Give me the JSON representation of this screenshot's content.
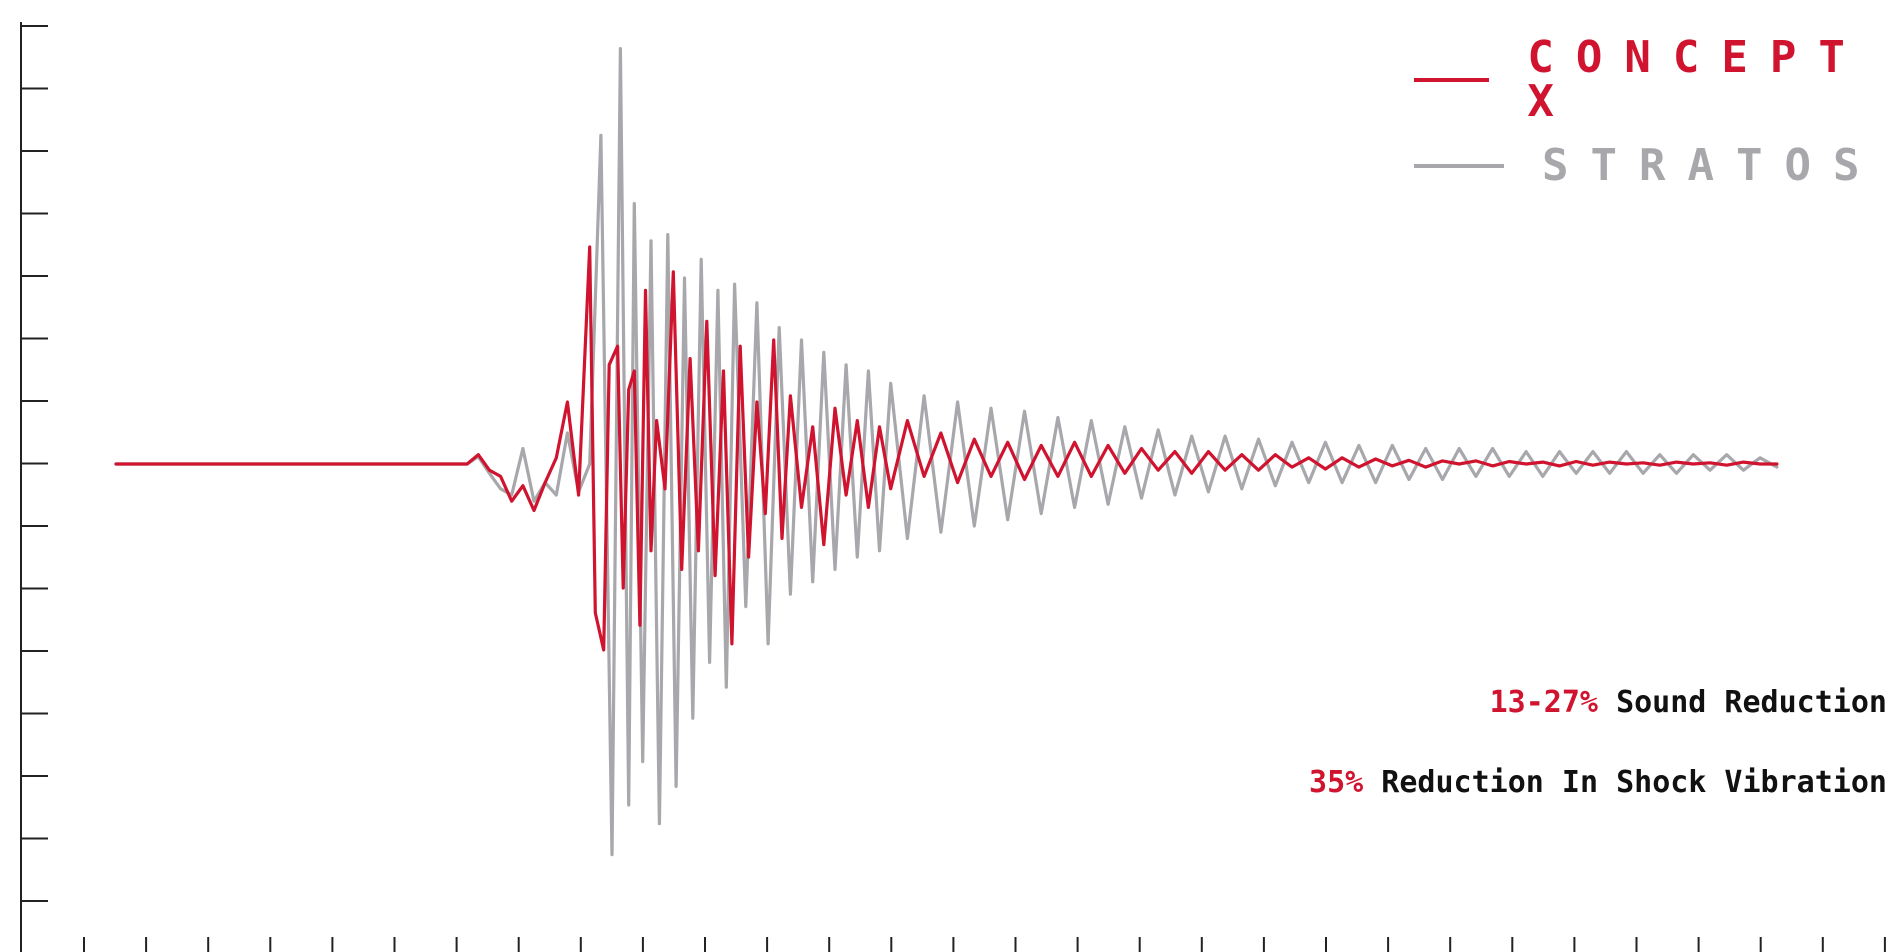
{
  "chart_data": {
    "type": "line",
    "title": "",
    "xlabel": "",
    "ylabel": "",
    "xlim": [
      0,
      30
    ],
    "ylim": [
      -7,
      7
    ],
    "x_tick_count": 30,
    "y_tick_count": 15,
    "grid": false,
    "legend_position": "top-right",
    "series": [
      {
        "name": "CONCEPT X",
        "color": "#d0132e",
        "x": [
          0,
          6.3,
          6.5,
          6.7,
          6.9,
          7.1,
          7.3,
          7.5,
          7.7,
          7.9,
          8.1,
          8.3,
          8.5,
          8.6,
          8.75,
          8.85,
          9.0,
          9.1,
          9.2,
          9.3,
          9.4,
          9.5,
          9.6,
          9.7,
          9.85,
          10.0,
          10.15,
          10.3,
          10.45,
          10.6,
          10.75,
          10.9,
          11.05,
          11.2,
          11.35,
          11.5,
          11.65,
          11.8,
          11.95,
          12.1,
          12.3,
          12.5,
          12.7,
          12.9,
          13.1,
          13.3,
          13.5,
          13.7,
          13.9,
          14.2,
          14.5,
          14.8,
          15.1,
          15.4,
          15.7,
          16.0,
          16.3,
          16.6,
          16.9,
          17.2,
          17.5,
          17.8,
          18.1,
          18.4,
          18.7,
          19.0,
          19.3,
          19.6,
          19.9,
          20.2,
          20.5,
          20.8,
          21.1,
          21.4,
          21.7,
          22.0,
          22.3,
          22.6,
          22.9,
          23.2,
          23.5,
          23.8,
          24.1,
          24.4,
          24.7,
          25.0,
          25.3,
          25.6,
          25.9,
          26.2,
          26.5,
          26.8,
          27.1,
          27.4,
          27.7,
          28.0,
          28.3,
          28.6,
          28.9,
          29.2,
          29.5,
          29.8
        ],
        "values": [
          0,
          0,
          0.15,
          -0.1,
          -0.2,
          -0.6,
          -0.35,
          -0.75,
          -0.3,
          0.1,
          1.0,
          -0.5,
          3.5,
          -2.4,
          -3.0,
          1.6,
          1.9,
          -2.0,
          1.2,
          1.5,
          -2.6,
          2.8,
          -1.4,
          0.7,
          -0.4,
          3.1,
          -1.7,
          1.7,
          -1.4,
          2.3,
          -1.8,
          1.5,
          -2.9,
          1.9,
          -1.5,
          1.0,
          -0.8,
          2.0,
          -1.2,
          1.1,
          -0.7,
          0.6,
          -1.3,
          0.9,
          -0.5,
          0.7,
          -0.7,
          0.6,
          -0.4,
          0.7,
          -0.2,
          0.5,
          -0.3,
          0.4,
          -0.2,
          0.35,
          -0.25,
          0.3,
          -0.2,
          0.35,
          -0.2,
          0.3,
          -0.15,
          0.25,
          -0.1,
          0.2,
          -0.15,
          0.2,
          -0.1,
          0.15,
          -0.1,
          0.15,
          -0.05,
          0.1,
          -0.08,
          0.1,
          -0.05,
          0.08,
          -0.03,
          0.06,
          -0.05,
          0.05,
          0.0,
          0.05,
          -0.03,
          0.04,
          0.0,
          0.03,
          -0.03,
          0.04,
          -0.02,
          0.03,
          0.0,
          0.02,
          -0.02,
          0.03,
          0.0,
          0.02,
          -0.02,
          0.03,
          0.0,
          0.0
        ]
      },
      {
        "name": "STRATOS",
        "color": "#a7a7ac",
        "x": [
          0,
          6.3,
          6.5,
          6.7,
          6.9,
          7.1,
          7.3,
          7.5,
          7.7,
          7.9,
          8.1,
          8.3,
          8.5,
          8.7,
          8.9,
          9.05,
          9.2,
          9.3,
          9.45,
          9.6,
          9.75,
          9.9,
          10.05,
          10.2,
          10.35,
          10.5,
          10.65,
          10.8,
          10.95,
          11.1,
          11.3,
          11.5,
          11.7,
          11.9,
          12.1,
          12.3,
          12.5,
          12.7,
          12.9,
          13.1,
          13.3,
          13.5,
          13.7,
          13.9,
          14.2,
          14.5,
          14.8,
          15.1,
          15.4,
          15.7,
          16.0,
          16.3,
          16.6,
          16.9,
          17.2,
          17.5,
          17.8,
          18.1,
          18.4,
          18.7,
          19.0,
          19.3,
          19.6,
          19.9,
          20.2,
          20.5,
          20.8,
          21.1,
          21.4,
          21.7,
          22.0,
          22.3,
          22.6,
          22.9,
          23.2,
          23.5,
          23.8,
          24.1,
          24.4,
          24.7,
          25.0,
          25.3,
          25.6,
          25.9,
          26.2,
          26.5,
          26.8,
          27.1,
          27.4,
          27.7,
          28.0,
          28.3,
          28.6,
          28.9,
          29.2,
          29.5,
          29.8
        ],
        "values": [
          0,
          0,
          0.12,
          -0.15,
          -0.4,
          -0.5,
          0.25,
          -0.6,
          -0.3,
          -0.5,
          0.5,
          -0.45,
          0.0,
          5.3,
          -6.3,
          6.7,
          -5.5,
          4.2,
          -4.8,
          3.6,
          -5.8,
          3.7,
          -5.2,
          3.0,
          -4.1,
          3.3,
          -3.2,
          2.8,
          -3.6,
          2.9,
          -2.3,
          2.6,
          -2.9,
          2.2,
          -2.1,
          2.0,
          -1.9,
          1.8,
          -1.7,
          1.6,
          -1.5,
          1.5,
          -1.4,
          1.3,
          -1.2,
          1.1,
          -1.1,
          1.0,
          -1.0,
          0.9,
          -0.9,
          0.85,
          -0.8,
          0.75,
          -0.7,
          0.7,
          -0.65,
          0.6,
          -0.55,
          0.55,
          -0.5,
          0.45,
          -0.45,
          0.45,
          -0.4,
          0.4,
          -0.35,
          0.35,
          -0.3,
          0.35,
          -0.3,
          0.3,
          -0.3,
          0.3,
          -0.25,
          0.25,
          -0.25,
          0.25,
          -0.2,
          0.25,
          -0.2,
          0.2,
          -0.2,
          0.2,
          -0.15,
          0.2,
          -0.15,
          0.2,
          -0.15,
          0.15,
          -0.15,
          0.15,
          -0.1,
          0.15,
          -0.1,
          0.1,
          -0.05
        ]
      }
    ],
    "annotations": [
      {
        "highlight": "13-27%",
        "text": "Sound Reduction"
      },
      {
        "highlight": "35%",
        "text": "Reduction In Shock Vibration"
      }
    ]
  },
  "colors": {
    "accent": "#d0132e",
    "secondary": "#a7a7ac",
    "text": "#111111",
    "axis": "#222222"
  }
}
